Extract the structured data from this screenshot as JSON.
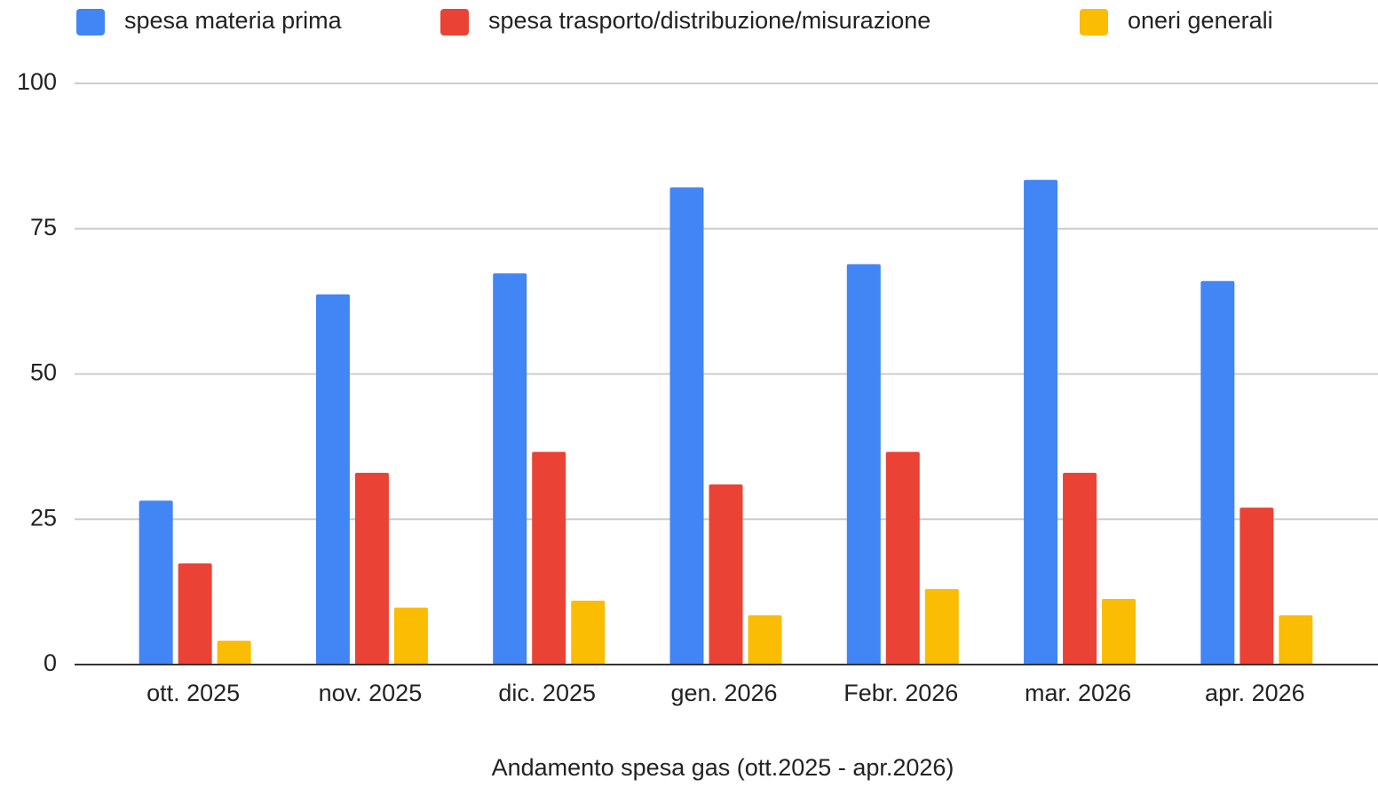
{
  "chart_data": {
    "type": "bar",
    "xlabel": "Andamento spesa gas (ott.2025 - apr.2026)",
    "categories": [
      "ott. 2025",
      "nov. 2025",
      "dic. 2025",
      "gen. 2026",
      "Febr. 2026",
      "mar. 2026",
      "apr. 2026"
    ],
    "series": [
      {
        "name": "spesa materia prima",
        "color": "#4285f4",
        "values": [
          28.2,
          63.7,
          67.3,
          82.1,
          68.9,
          83.4,
          66.0
        ]
      },
      {
        "name": "spesa trasporto/distribuzione/misurazione",
        "color": "#ea4335",
        "values": [
          17.4,
          33.0,
          36.6,
          31.0,
          36.6,
          33.0,
          27.0
        ]
      },
      {
        "name": "oneri generali",
        "color": "#fbbc04",
        "values": [
          4.1,
          9.8,
          11.0,
          8.5,
          13.0,
          11.3,
          8.5
        ]
      }
    ],
    "ylim": [
      0,
      100
    ],
    "yticks": [
      0,
      25,
      50,
      75,
      100
    ],
    "grid": true,
    "legend": "top"
  }
}
